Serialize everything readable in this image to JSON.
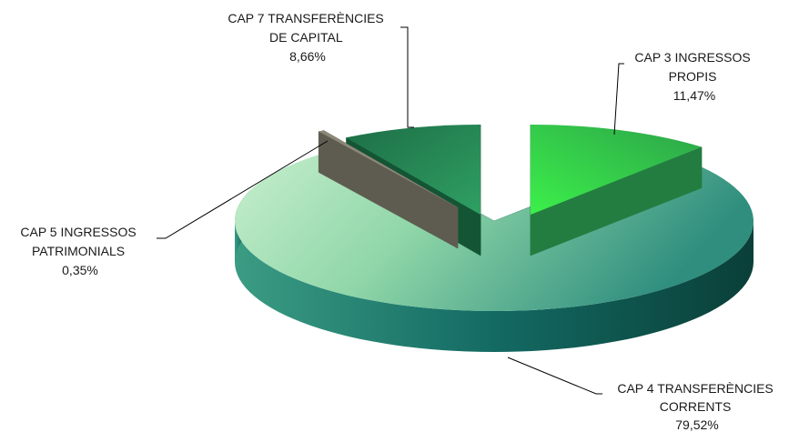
{
  "chart_data": {
    "type": "pie",
    "title": "",
    "view": "3d-exploded",
    "legend": "none",
    "slices": [
      {
        "id": "cap3",
        "label_lines": [
          "CAP 3 INGRESSOS",
          "PROPIS"
        ],
        "value_label": "11,47%",
        "value": 11.47,
        "top_color": "#3fd94a",
        "side_color": "#1f7a3a"
      },
      {
        "id": "cap4",
        "label_lines": [
          "CAP 4 TRANSFERÈNCIES",
          "CORRENTS"
        ],
        "value_label": "79,52%",
        "value": 79.52,
        "top_color": "#8fd6a8",
        "side_color": "#0f5a52"
      },
      {
        "id": "cap5",
        "label_lines": [
          "CAP 5 INGRESSOS",
          "PATRIMONIALS"
        ],
        "value_label": "0,35%",
        "value": 0.35,
        "top_color": "#8c8878",
        "side_color": "#4b4a40"
      },
      {
        "id": "cap7",
        "label_lines": [
          "CAP 7 TRANSFERÈNCIES",
          "DE CAPITAL"
        ],
        "value_label": "8,66%",
        "value": 8.66,
        "top_color": "#1f8a55",
        "side_color": "#0d3f2a"
      }
    ]
  }
}
